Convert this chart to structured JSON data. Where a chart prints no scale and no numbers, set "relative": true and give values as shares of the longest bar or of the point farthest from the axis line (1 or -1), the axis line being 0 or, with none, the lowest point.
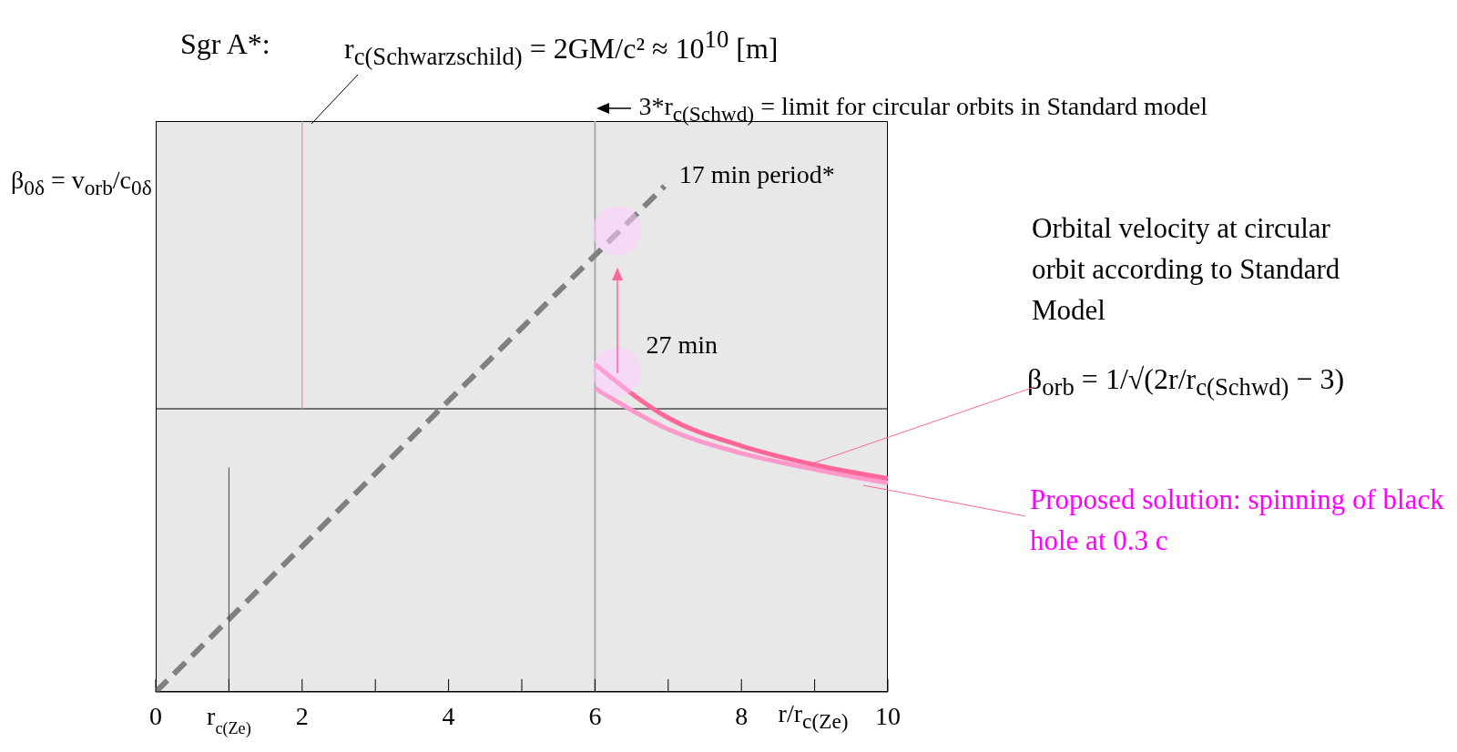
{
  "chart_data": {
    "type": "line",
    "relative": true,
    "title": "Sgr A*:",
    "subtitle": "r$_{c(Schwarzschild)}$ = 2GM/c² ≈ 10$^{10}$   [m]",
    "ylabel": "β$_{0δ}$ = v$_{orb}$/c$_{0δ}$",
    "xlabel": "r/r$_{c(Ze)}$",
    "xlim": [
      0,
      10
    ],
    "xticks": [
      0,
      {
        "value": 1,
        "label": "r$_{c(Ze)}$"
      },
      2,
      {
        "value": 3,
        "label": null
      },
      4,
      {
        "value": 5,
        "label": null
      },
      6,
      {
        "value": 7,
        "label": null
      },
      8,
      {
        "value": 9,
        "label": null
      },
      10
    ],
    "marker": "none",
    "series": [
      {
        "color": "#808080",
        "line_style": "dashed",
        "x": [
          0,
          6.95
        ],
        "values": [
          0,
          0.886
        ]
      },
      {
        "color": "#ff99cc",
        "x": [
          6,
          7,
          8,
          9,
          10
        ],
        "values": [
          0.532,
          0.46,
          0.418,
          0.39,
          0.366
        ]
      },
      {
        "color": "#ff6699",
        "x": [
          6,
          7,
          8,
          9,
          10
        ],
        "values": [
          0.574,
          0.48,
          0.431,
          0.398,
          0.374
        ]
      },
      {
        "color": "#ff6699",
        "x": [
          2,
          2
        ],
        "values": [
          0.496,
          1
        ]
      },
      {
        "color": "#3333aa",
        "x": [
          1,
          1
        ],
        "values": [
          0,
          0.393
        ]
      },
      {
        "type": "scatter",
        "marker": "circle",
        "color": "#ffccff",
        "x": [
          6.3,
          6.3
        ],
        "values": [
          0.808,
          0.561
        ]
      }
    ],
    "ref_lines": [
      {
        "axis": "x",
        "value": 6,
        "label": "3*r$_{c(Schwd)}$ = limit for circular orbits in Standard model",
        "color": "#aaaaaa"
      },
      {
        "axis": "y",
        "value": 0.496,
        "color": "#000000"
      }
    ],
    "annotations": [
      {
        "text": "17 min period*",
        "x": 6.95,
        "y": 0.886
      },
      {
        "text": "27 min",
        "x": 6.3,
        "y": 0.561
      },
      "Orbital velocity at circular orbit according to Standard Model",
      "β$_{orb}$ = 1/√(2r/r$_{c(Schwd)}$ − 3)",
      "Proposed solution: spinning of black hole at 0.3 c"
    ]
  }
}
